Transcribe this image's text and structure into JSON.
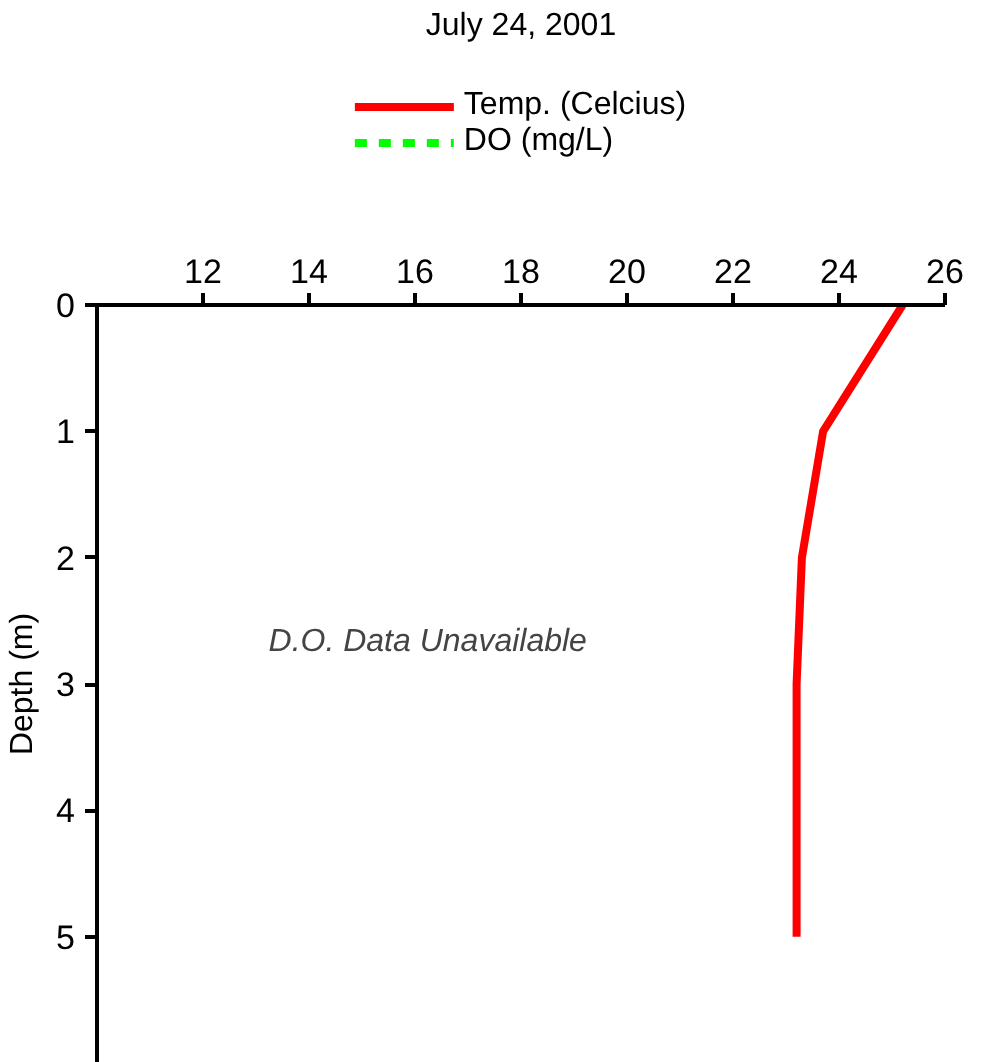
{
  "chart_data": {
    "type": "line",
    "title": "July 24, 2001",
    "ylabel": "Depth (m)",
    "series": [
      {
        "name": "Temp. (Celcius)",
        "color": "#ff0000",
        "line_style": "solid",
        "x": [
          25.2,
          23.7,
          23.3,
          23.2,
          23.2,
          23.2
        ],
        "values": [
          0,
          1,
          2,
          3,
          4,
          5
        ]
      },
      {
        "name": "DO (mg/L)",
        "color": "#00ff00",
        "line_style": "dashed"
      }
    ],
    "xlim": [
      10,
      26
    ],
    "xticks": [
      12,
      14,
      16,
      18,
      20,
      22,
      24,
      26
    ],
    "ylim": [
      6,
      0
    ],
    "yticks": [
      0,
      1,
      2,
      3,
      4,
      5
    ],
    "annotations": [
      "D.O. Data Unavailable"
    ],
    "grid": false,
    "marker": "none",
    "legend": "top"
  }
}
